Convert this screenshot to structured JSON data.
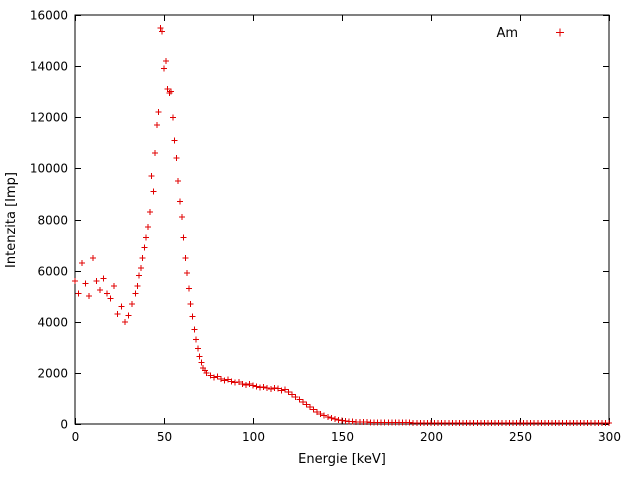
{
  "legend": {
    "label": "Am"
  },
  "colors": {
    "marker": "#e00000",
    "axis": "#000000",
    "text": "#000000",
    "background": "#ffffff"
  },
  "chart_data": {
    "type": "scatter",
    "marker": "plus",
    "title": "",
    "xlabel": "Energie [keV]",
    "ylabel": "Intenzita [Imp]",
    "xlim": [
      0,
      300
    ],
    "ylim": [
      0,
      16000
    ],
    "xticks": [
      0,
      50,
      100,
      150,
      200,
      250,
      300
    ],
    "yticks": [
      0,
      2000,
      4000,
      6000,
      8000,
      10000,
      12000,
      14000,
      16000
    ],
    "grid": false,
    "legend_position": "top-right",
    "series": [
      {
        "name": "Am",
        "points": [
          [
            0,
            5600
          ],
          [
            2,
            5100
          ],
          [
            4,
            6300
          ],
          [
            6,
            5500
          ],
          [
            8,
            5000
          ],
          [
            10,
            6500
          ],
          [
            12,
            5600
          ],
          [
            14,
            5250
          ],
          [
            16,
            5700
          ],
          [
            18,
            5100
          ],
          [
            20,
            4900
          ],
          [
            22,
            5400
          ],
          [
            24,
            4300
          ],
          [
            26,
            4600
          ],
          [
            28,
            4000
          ],
          [
            30,
            4250
          ],
          [
            32,
            4700
          ],
          [
            34,
            5100
          ],
          [
            35,
            5400
          ],
          [
            36,
            5800
          ],
          [
            37,
            6100
          ],
          [
            38,
            6500
          ],
          [
            39,
            6900
          ],
          [
            40,
            7300
          ],
          [
            41,
            7700
          ],
          [
            42,
            8300
          ],
          [
            43,
            9700
          ],
          [
            44,
            9100
          ],
          [
            45,
            10600
          ],
          [
            46,
            11700
          ],
          [
            47,
            12200
          ],
          [
            48,
            15500
          ],
          [
            49,
            15350
          ],
          [
            50,
            13900
          ],
          [
            51,
            14200
          ],
          [
            52,
            13100
          ],
          [
            53,
            12950
          ],
          [
            54,
            13000
          ],
          [
            55,
            12000
          ],
          [
            56,
            11100
          ],
          [
            57,
            10400
          ],
          [
            58,
            9500
          ],
          [
            59,
            8700
          ],
          [
            60,
            8100
          ],
          [
            61,
            7300
          ],
          [
            62,
            6500
          ],
          [
            63,
            5900
          ],
          [
            64,
            5300
          ],
          [
            65,
            4700
          ],
          [
            66,
            4200
          ],
          [
            67,
            3700
          ],
          [
            68,
            3300
          ],
          [
            69,
            2950
          ],
          [
            70,
            2650
          ],
          [
            71,
            2400
          ],
          [
            72,
            2200
          ],
          [
            73,
            2100
          ],
          [
            74,
            2000
          ],
          [
            76,
            1900
          ],
          [
            78,
            1820
          ],
          [
            80,
            1860
          ],
          [
            82,
            1760
          ],
          [
            84,
            1700
          ],
          [
            86,
            1740
          ],
          [
            88,
            1660
          ],
          [
            90,
            1620
          ],
          [
            92,
            1650
          ],
          [
            94,
            1560
          ],
          [
            96,
            1520
          ],
          [
            98,
            1560
          ],
          [
            100,
            1500
          ],
          [
            102,
            1460
          ],
          [
            104,
            1420
          ],
          [
            106,
            1450
          ],
          [
            108,
            1400
          ],
          [
            110,
            1360
          ],
          [
            112,
            1400
          ],
          [
            114,
            1380
          ],
          [
            116,
            1320
          ],
          [
            118,
            1350
          ],
          [
            120,
            1260
          ],
          [
            122,
            1160
          ],
          [
            124,
            1060
          ],
          [
            126,
            960
          ],
          [
            128,
            860
          ],
          [
            130,
            760
          ],
          [
            132,
            660
          ],
          [
            134,
            560
          ],
          [
            136,
            460
          ],
          [
            138,
            390
          ],
          [
            140,
            330
          ],
          [
            142,
            280
          ],
          [
            144,
            235
          ],
          [
            146,
            195
          ],
          [
            148,
            165
          ],
          [
            150,
            140
          ],
          [
            152,
            120
          ],
          [
            154,
            105
          ],
          [
            156,
            95
          ],
          [
            158,
            88
          ],
          [
            160,
            80
          ],
          [
            162,
            75
          ],
          [
            164,
            70
          ],
          [
            166,
            67
          ],
          [
            168,
            64
          ],
          [
            170,
            62
          ],
          [
            172,
            60
          ],
          [
            174,
            58
          ],
          [
            176,
            56
          ],
          [
            178,
            55
          ],
          [
            180,
            53
          ],
          [
            182,
            52
          ],
          [
            184,
            51
          ],
          [
            186,
            50
          ],
          [
            188,
            49
          ],
          [
            190,
            48
          ],
          [
            192,
            47
          ],
          [
            194,
            47
          ],
          [
            196,
            46
          ],
          [
            198,
            45
          ],
          [
            200,
            45
          ],
          [
            202,
            44
          ],
          [
            204,
            44
          ],
          [
            206,
            43
          ],
          [
            208,
            43
          ],
          [
            210,
            42
          ],
          [
            212,
            42
          ],
          [
            214,
            41
          ],
          [
            216,
            41
          ],
          [
            218,
            40
          ],
          [
            220,
            40
          ],
          [
            222,
            39
          ],
          [
            224,
            39
          ],
          [
            226,
            38
          ],
          [
            228,
            38
          ],
          [
            230,
            38
          ],
          [
            232,
            37
          ],
          [
            234,
            37
          ],
          [
            236,
            37
          ],
          [
            238,
            36
          ],
          [
            240,
            36
          ],
          [
            242,
            36
          ],
          [
            244,
            35
          ],
          [
            246,
            35
          ],
          [
            248,
            35
          ],
          [
            250,
            34
          ],
          [
            252,
            34
          ],
          [
            254,
            34
          ],
          [
            256,
            34
          ],
          [
            258,
            33
          ],
          [
            260,
            33
          ],
          [
            262,
            33
          ],
          [
            264,
            33
          ],
          [
            266,
            32
          ],
          [
            268,
            32
          ],
          [
            270,
            32
          ],
          [
            272,
            32
          ],
          [
            274,
            31
          ],
          [
            276,
            31
          ],
          [
            278,
            31
          ],
          [
            280,
            31
          ],
          [
            282,
            31
          ],
          [
            284,
            30
          ],
          [
            286,
            30
          ],
          [
            288,
            30
          ],
          [
            290,
            30
          ],
          [
            292,
            30
          ],
          [
            294,
            30
          ],
          [
            296,
            30
          ],
          [
            298,
            30
          ],
          [
            300,
            30
          ]
        ]
      }
    ]
  }
}
